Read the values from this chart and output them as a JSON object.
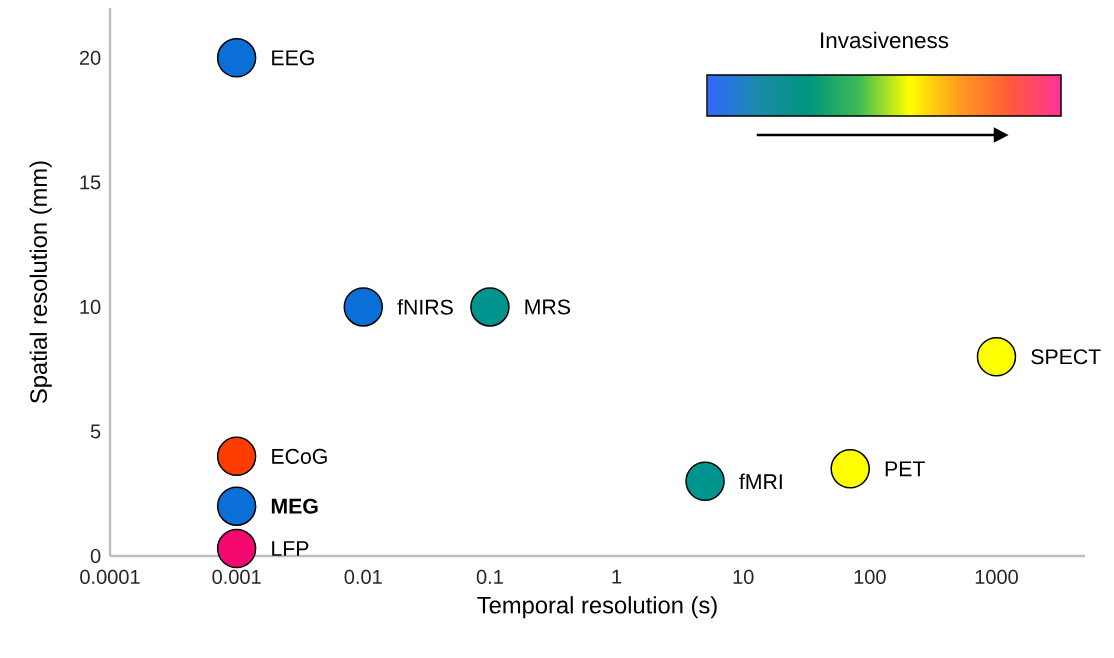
{
  "chart_data": {
    "type": "scatter",
    "xlabel": "Temporal resolution (s)",
    "ylabel": "Spatial resolution (mm)",
    "clabel": "Invasiveness",
    "x": [
      0.001,
      0.01,
      0.1,
      0.001,
      0.001,
      0.001,
      5,
      70,
      1000
    ],
    "values": [
      20,
      10,
      10,
      4,
      2,
      0.3,
      3,
      3.5,
      8
    ],
    "colors": [
      "#0a6fd6",
      "#0a6fd6",
      "#00948f",
      "#ff3c00",
      "#0a6fd6",
      "#f2086e",
      "#00948f",
      "#ffff00",
      "#ffff00"
    ],
    "annotations": [
      {
        "text": "EEG",
        "x": 0.001,
        "y": 20
      },
      {
        "text": "fNIRS",
        "x": 0.01,
        "y": 10
      },
      {
        "text": "MRS",
        "x": 0.1,
        "y": 10
      },
      {
        "text": "ECoG",
        "x": 0.001,
        "y": 4
      },
      {
        "text": "**MEG**",
        "x": 0.001,
        "y": 2
      },
      {
        "text": "LFP",
        "x": 0.001,
        "y": 0.3
      },
      {
        "text": "fMRI",
        "x": 5,
        "y": 3
      },
      {
        "text": "PET",
        "x": 70,
        "y": 3.5
      },
      {
        "text": "SPECT",
        "x": 1000,
        "y": 8
      }
    ],
    "log": "x",
    "marker": "circle",
    "xlim": [
      0.0001,
      5000
    ],
    "ylim": [
      0,
      22
    ],
    "xticks": [
      0.0001,
      0.001,
      0.01,
      0.1,
      1,
      10,
      100,
      1000
    ],
    "yticks": [
      0,
      5,
      10,
      15,
      20
    ]
  }
}
